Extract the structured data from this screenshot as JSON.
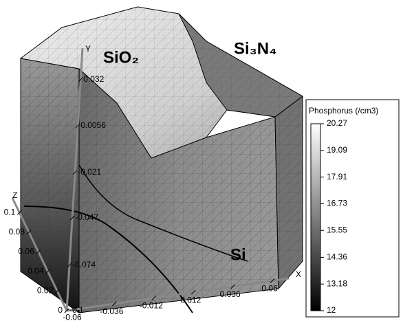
{
  "chart_data": {
    "type": "surface3d",
    "x_label": "X",
    "y_label": "Y",
    "z_label": "Z",
    "xlim": [
      -0.065,
      0.07
    ],
    "xticks": [
      -0.06,
      -0.036,
      -0.012,
      0.012,
      0.036,
      0.06
    ],
    "ylim": [
      -0.1,
      0.05
    ],
    "yticks": [
      -0.1,
      -0.074,
      -0.047,
      -0.021,
      0.0056,
      0.032
    ],
    "zlim": [
      0,
      0.115
    ],
    "zticks": [
      0,
      0.02,
      0.04,
      0.06,
      0.08,
      0.1
    ],
    "annotations": [
      "SiO₂",
      "Si₃N₄",
      "Si"
    ],
    "colorbar": {
      "title": "Phosphorus (/cm3)",
      "lim": [
        12,
        20.27
      ],
      "ticks": [
        20.27,
        19.09,
        17.91,
        16.73,
        15.55,
        14.36,
        13.18,
        12
      ]
    }
  }
}
